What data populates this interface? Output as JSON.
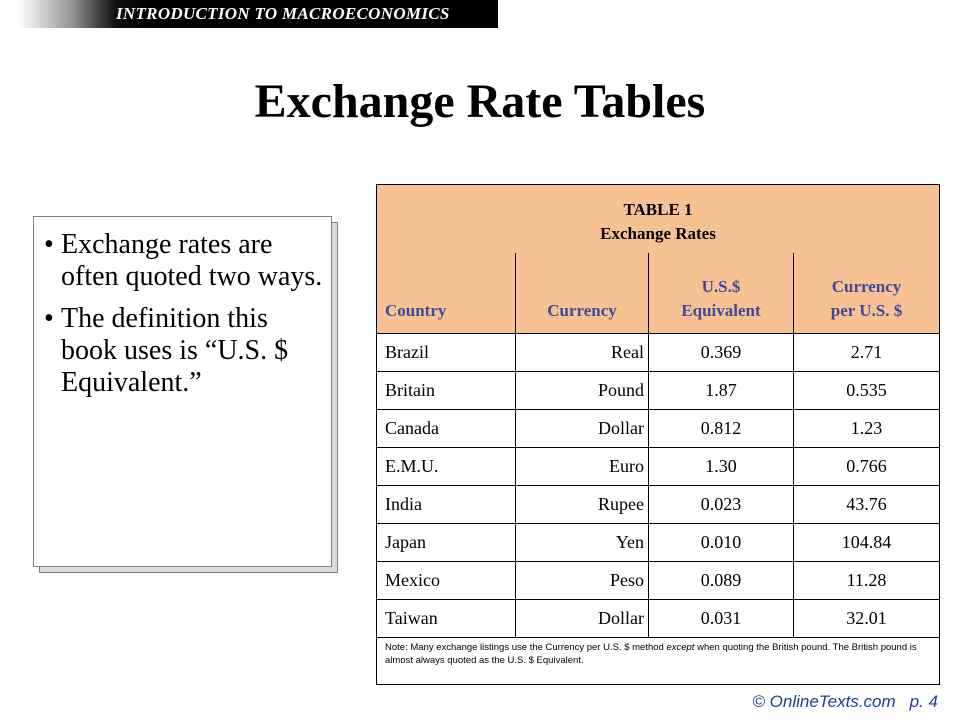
{
  "banner": {
    "text": "INTRODUCTION TO MACROECONOMICS"
  },
  "title": "Exchange Rate Tables",
  "bullets": [
    "Exchange rates are often quoted two ways.",
    "The definition this book uses is “U.S. $ Equivalent.”"
  ],
  "table": {
    "caption_line1": "TABLE 1",
    "caption_line2": "Exchange Rates",
    "headers": {
      "country": "Country",
      "currency": "Currency",
      "usd_equiv_line1": "U.S.$",
      "usd_equiv_line2": "Equivalent",
      "per_usd_line1": "Currency",
      "per_usd_line2": "per U.S. $"
    },
    "rows": [
      {
        "country": "Brazil",
        "currency": "Real",
        "usd_equivalent": "0.369",
        "per_usd": "2.71"
      },
      {
        "country": "Britain",
        "currency": "Pound",
        "usd_equivalent": "1.87",
        "per_usd": "0.535"
      },
      {
        "country": "Canada",
        "currency": "Dollar",
        "usd_equivalent": "0.812",
        "per_usd": "1.23"
      },
      {
        "country": "E.M.U.",
        "currency": "Euro",
        "usd_equivalent": "1.30",
        "per_usd": "0.766"
      },
      {
        "country": "India",
        "currency": "Rupee",
        "usd_equivalent": "0.023",
        "per_usd": "43.76"
      },
      {
        "country": "Japan",
        "currency": "Yen",
        "usd_equivalent": "0.010",
        "per_usd": "104.84"
      },
      {
        "country": "Mexico",
        "currency": "Peso",
        "usd_equivalent": "0.089",
        "per_usd": "11.28"
      },
      {
        "country": "Taiwan",
        "currency": "Dollar",
        "usd_equivalent": "0.031",
        "per_usd": "32.01"
      }
    ],
    "note_prefix": "Note: Many exchange listings use the Currency per U.S. $ method ",
    "note_emphasis": "except",
    "note_suffix": " when quoting the British pound. The British pound is almost always quoted as the U.S. $ Equivalent."
  },
  "footer": {
    "site": "© OnlineTexts.com",
    "page": "p. 4"
  },
  "colors": {
    "table_header_bg": "#f7c293",
    "header_text": "#3d4b9a",
    "footer_text": "#1f3f96"
  }
}
